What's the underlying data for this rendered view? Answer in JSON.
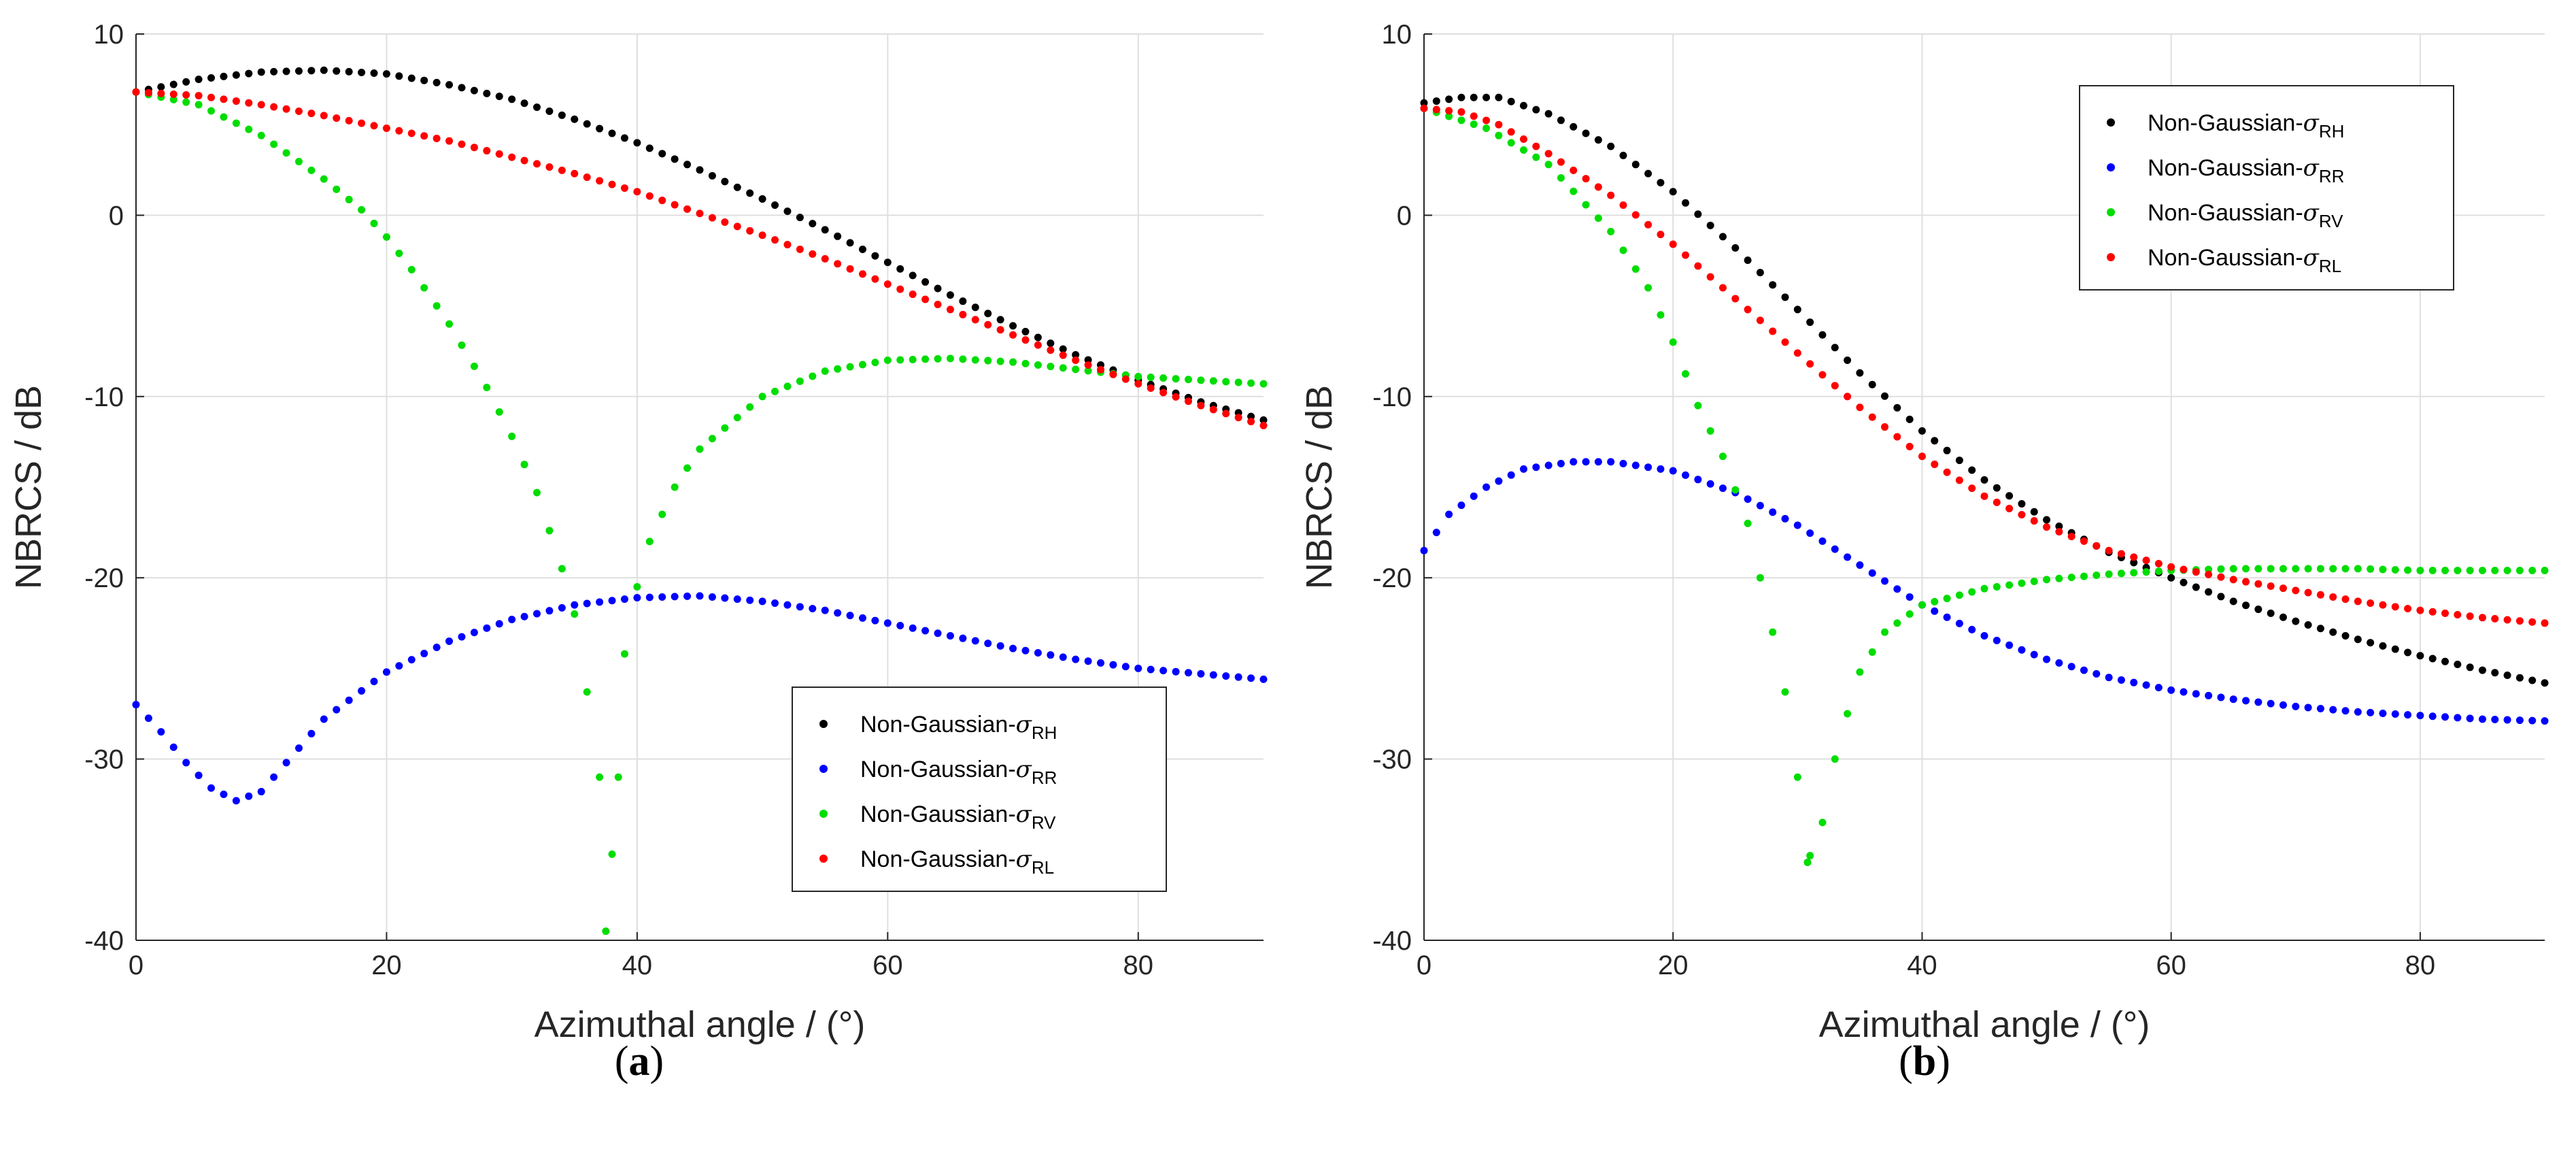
{
  "chart_data": [
    {
      "type": "scatter",
      "panel": "(a)",
      "xlabel": "Azimuthal angle / (°)",
      "ylabel": "NBRCS / dB",
      "xlim": [
        0,
        90
      ],
      "ylim": [
        -40,
        10
      ],
      "xticks": [
        "0",
        "20",
        "40",
        "60",
        "80"
      ],
      "yticks": [
        "10",
        "0",
        "-10",
        "-20",
        "-30",
        "-40"
      ],
      "grid": true,
      "legend_position": "bottom-right",
      "series": [
        {
          "name": "Non-Gaussian-σRH",
          "prefix": "Non-Gaussian-",
          "sub": "RH",
          "color": "#000000",
          "points": [
            [
              0,
              6.8
            ],
            [
              5,
              7.5
            ],
            [
              10,
              7.9
            ],
            [
              15,
              8.0
            ],
            [
              20,
              7.8
            ],
            [
              25,
              7.2
            ],
            [
              30,
              6.4
            ],
            [
              35,
              5.3
            ],
            [
              40,
              4.0
            ],
            [
              45,
              2.5
            ],
            [
              50,
              0.9
            ],
            [
              55,
              -0.8
            ],
            [
              60,
              -2.6
            ],
            [
              65,
              -4.4
            ],
            [
              70,
              -6.1
            ],
            [
              75,
              -7.7
            ],
            [
              80,
              -9.1
            ],
            [
              85,
              -10.3
            ],
            [
              90,
              -11.3
            ]
          ]
        },
        {
          "name": "Non-Gaussian-σRR",
          "prefix": "Non-Gaussian-",
          "sub": "RR",
          "color": "#0000ff",
          "points": [
            [
              0,
              -27.0
            ],
            [
              2,
              -28.5
            ],
            [
              4,
              -30.2
            ],
            [
              6,
              -31.6
            ],
            [
              8,
              -32.3
            ],
            [
              10,
              -31.8
            ],
            [
              12,
              -30.2
            ],
            [
              15,
              -27.8
            ],
            [
              20,
              -25.2
            ],
            [
              25,
              -23.5
            ],
            [
              30,
              -22.3
            ],
            [
              35,
              -21.5
            ],
            [
              40,
              -21.1
            ],
            [
              45,
              -21.0
            ],
            [
              50,
              -21.3
            ],
            [
              55,
              -21.8
            ],
            [
              60,
              -22.5
            ],
            [
              65,
              -23.2
            ],
            [
              70,
              -23.9
            ],
            [
              75,
              -24.5
            ],
            [
              80,
              -25.0
            ],
            [
              85,
              -25.3
            ],
            [
              90,
              -25.6
            ]
          ]
        },
        {
          "name": "Non-Gaussian-σRV",
          "prefix": "Non-Gaussian-",
          "sub": "RV",
          "color": "#00dd00",
          "points": [
            [
              0,
              6.8
            ],
            [
              5,
              6.1
            ],
            [
              10,
              4.4
            ],
            [
              15,
              2.0
            ],
            [
              18,
              0.3
            ],
            [
              20,
              -1.2
            ],
            [
              22,
              -3.0
            ],
            [
              25,
              -6.0
            ],
            [
              28,
              -9.5
            ],
            [
              30,
              -12.2
            ],
            [
              32,
              -15.3
            ],
            [
              34,
              -19.5
            ],
            [
              35,
              -22.0
            ],
            [
              36,
              -26.3
            ],
            [
              37,
              -31.0
            ],
            [
              37.5,
              -39.5
            ],
            [
              38.5,
              -31.0
            ],
            [
              39,
              -24.2
            ],
            [
              40,
              -20.5
            ],
            [
              41,
              -18.0
            ],
            [
              43,
              -15.0
            ],
            [
              45,
              -12.9
            ],
            [
              50,
              -10.0
            ],
            [
              55,
              -8.6
            ],
            [
              60,
              -8.0
            ],
            [
              65,
              -7.9
            ],
            [
              70,
              -8.1
            ],
            [
              75,
              -8.5
            ],
            [
              80,
              -8.9
            ],
            [
              85,
              -9.1
            ],
            [
              90,
              -9.3
            ]
          ]
        },
        {
          "name": "Non-Gaussian-σRL",
          "prefix": "Non-Gaussian-",
          "sub": "RL",
          "color": "#ff0000",
          "points": [
            [
              0,
              6.8
            ],
            [
              5,
              6.6
            ],
            [
              10,
              6.1
            ],
            [
              15,
              5.5
            ],
            [
              20,
              4.8
            ],
            [
              25,
              4.1
            ],
            [
              30,
              3.2
            ],
            [
              35,
              2.3
            ],
            [
              40,
              1.3
            ],
            [
              45,
              0.1
            ],
            [
              50,
              -1.1
            ],
            [
              55,
              -2.4
            ],
            [
              60,
              -3.8
            ],
            [
              65,
              -5.2
            ],
            [
              70,
              -6.6
            ],
            [
              75,
              -8.0
            ],
            [
              80,
              -9.3
            ],
            [
              85,
              -10.5
            ],
            [
              90,
              -11.6
            ]
          ]
        }
      ]
    },
    {
      "type": "scatter",
      "panel": "(b)",
      "xlabel": "Azimuthal angle / (°)",
      "ylabel": "NBRCS / dB",
      "xlim": [
        0,
        90
      ],
      "ylim": [
        -40,
        10
      ],
      "xticks": [
        "0",
        "20",
        "40",
        "60",
        "80"
      ],
      "yticks": [
        "10",
        "0",
        "-10",
        "-20",
        "-30",
        "-40"
      ],
      "grid": true,
      "legend_position": "top-right",
      "series": [
        {
          "name": "Non-Gaussian-σRH",
          "prefix": "Non-Gaussian-",
          "sub": "RH",
          "color": "#000000",
          "points": [
            [
              0,
              6.2
            ],
            [
              3,
              6.5
            ],
            [
              6,
              6.5
            ],
            [
              10,
              5.6
            ],
            [
              15,
              3.8
            ],
            [
              20,
              1.3
            ],
            [
              25,
              -1.8
            ],
            [
              30,
              -5.2
            ],
            [
              35,
              -8.7
            ],
            [
              40,
              -11.9
            ],
            [
              45,
              -14.6
            ],
            [
              50,
              -16.8
            ],
            [
              55,
              -18.6
            ],
            [
              60,
              -20.0
            ],
            [
              65,
              -21.3
            ],
            [
              70,
              -22.4
            ],
            [
              75,
              -23.4
            ],
            [
              80,
              -24.3
            ],
            [
              85,
              -25.1
            ],
            [
              90,
              -25.8
            ]
          ]
        },
        {
          "name": "Non-Gaussian-σRR",
          "prefix": "Non-Gaussian-",
          "sub": "RR",
          "color": "#0000ff",
          "points": [
            [
              0,
              -18.5
            ],
            [
              2,
              -16.5
            ],
            [
              5,
              -15.0
            ],
            [
              8,
              -14.0
            ],
            [
              12,
              -13.6
            ],
            [
              15,
              -13.6
            ],
            [
              20,
              -14.1
            ],
            [
              25,
              -15.3
            ],
            [
              30,
              -17.1
            ],
            [
              35,
              -19.3
            ],
            [
              40,
              -21.5
            ],
            [
              45,
              -23.2
            ],
            [
              50,
              -24.5
            ],
            [
              55,
              -25.5
            ],
            [
              60,
              -26.2
            ],
            [
              65,
              -26.7
            ],
            [
              70,
              -27.1
            ],
            [
              75,
              -27.4
            ],
            [
              80,
              -27.6
            ],
            [
              85,
              -27.8
            ],
            [
              90,
              -27.9
            ]
          ]
        },
        {
          "name": "Non-Gaussian-σRV",
          "prefix": "Non-Gaussian-",
          "sub": "RV",
          "color": "#00dd00",
          "points": [
            [
              0,
              5.9
            ],
            [
              5,
              4.8
            ],
            [
              10,
              2.8
            ],
            [
              15,
              -0.9
            ],
            [
              18,
              -4.0
            ],
            [
              20,
              -7.0
            ],
            [
              22,
              -10.5
            ],
            [
              24,
              -13.3
            ],
            [
              26,
              -17.0
            ],
            [
              27,
              -20.0
            ],
            [
              28,
              -23.0
            ],
            [
              29,
              -26.3
            ],
            [
              30,
              -31.0
            ],
            [
              30.8,
              -35.7
            ],
            [
              32,
              -33.5
            ],
            [
              33,
              -30.0
            ],
            [
              34,
              -27.5
            ],
            [
              35,
              -25.2
            ],
            [
              37,
              -23.0
            ],
            [
              40,
              -21.5
            ],
            [
              45,
              -20.6
            ],
            [
              50,
              -20.1
            ],
            [
              55,
              -19.8
            ],
            [
              60,
              -19.6
            ],
            [
              65,
              -19.5
            ],
            [
              70,
              -19.5
            ],
            [
              75,
              -19.5
            ],
            [
              80,
              -19.6
            ],
            [
              85,
              -19.6
            ],
            [
              90,
              -19.6
            ]
          ]
        },
        {
          "name": "Non-Gaussian-σRL",
          "prefix": "Non-Gaussian-",
          "sub": "RL",
          "color": "#ff0000",
          "points": [
            [
              0,
              5.9
            ],
            [
              3,
              5.7
            ],
            [
              6,
              5.0
            ],
            [
              10,
              3.4
            ],
            [
              15,
              1.1
            ],
            [
              20,
              -1.6
            ],
            [
              25,
              -4.6
            ],
            [
              30,
              -7.6
            ],
            [
              35,
              -10.6
            ],
            [
              40,
              -13.3
            ],
            [
              45,
              -15.5
            ],
            [
              50,
              -17.2
            ],
            [
              55,
              -18.5
            ],
            [
              60,
              -19.4
            ],
            [
              65,
              -20.1
            ],
            [
              70,
              -20.7
            ],
            [
              75,
              -21.3
            ],
            [
              80,
              -21.8
            ],
            [
              85,
              -22.2
            ],
            [
              90,
              -22.5
            ]
          ]
        }
      ]
    }
  ]
}
